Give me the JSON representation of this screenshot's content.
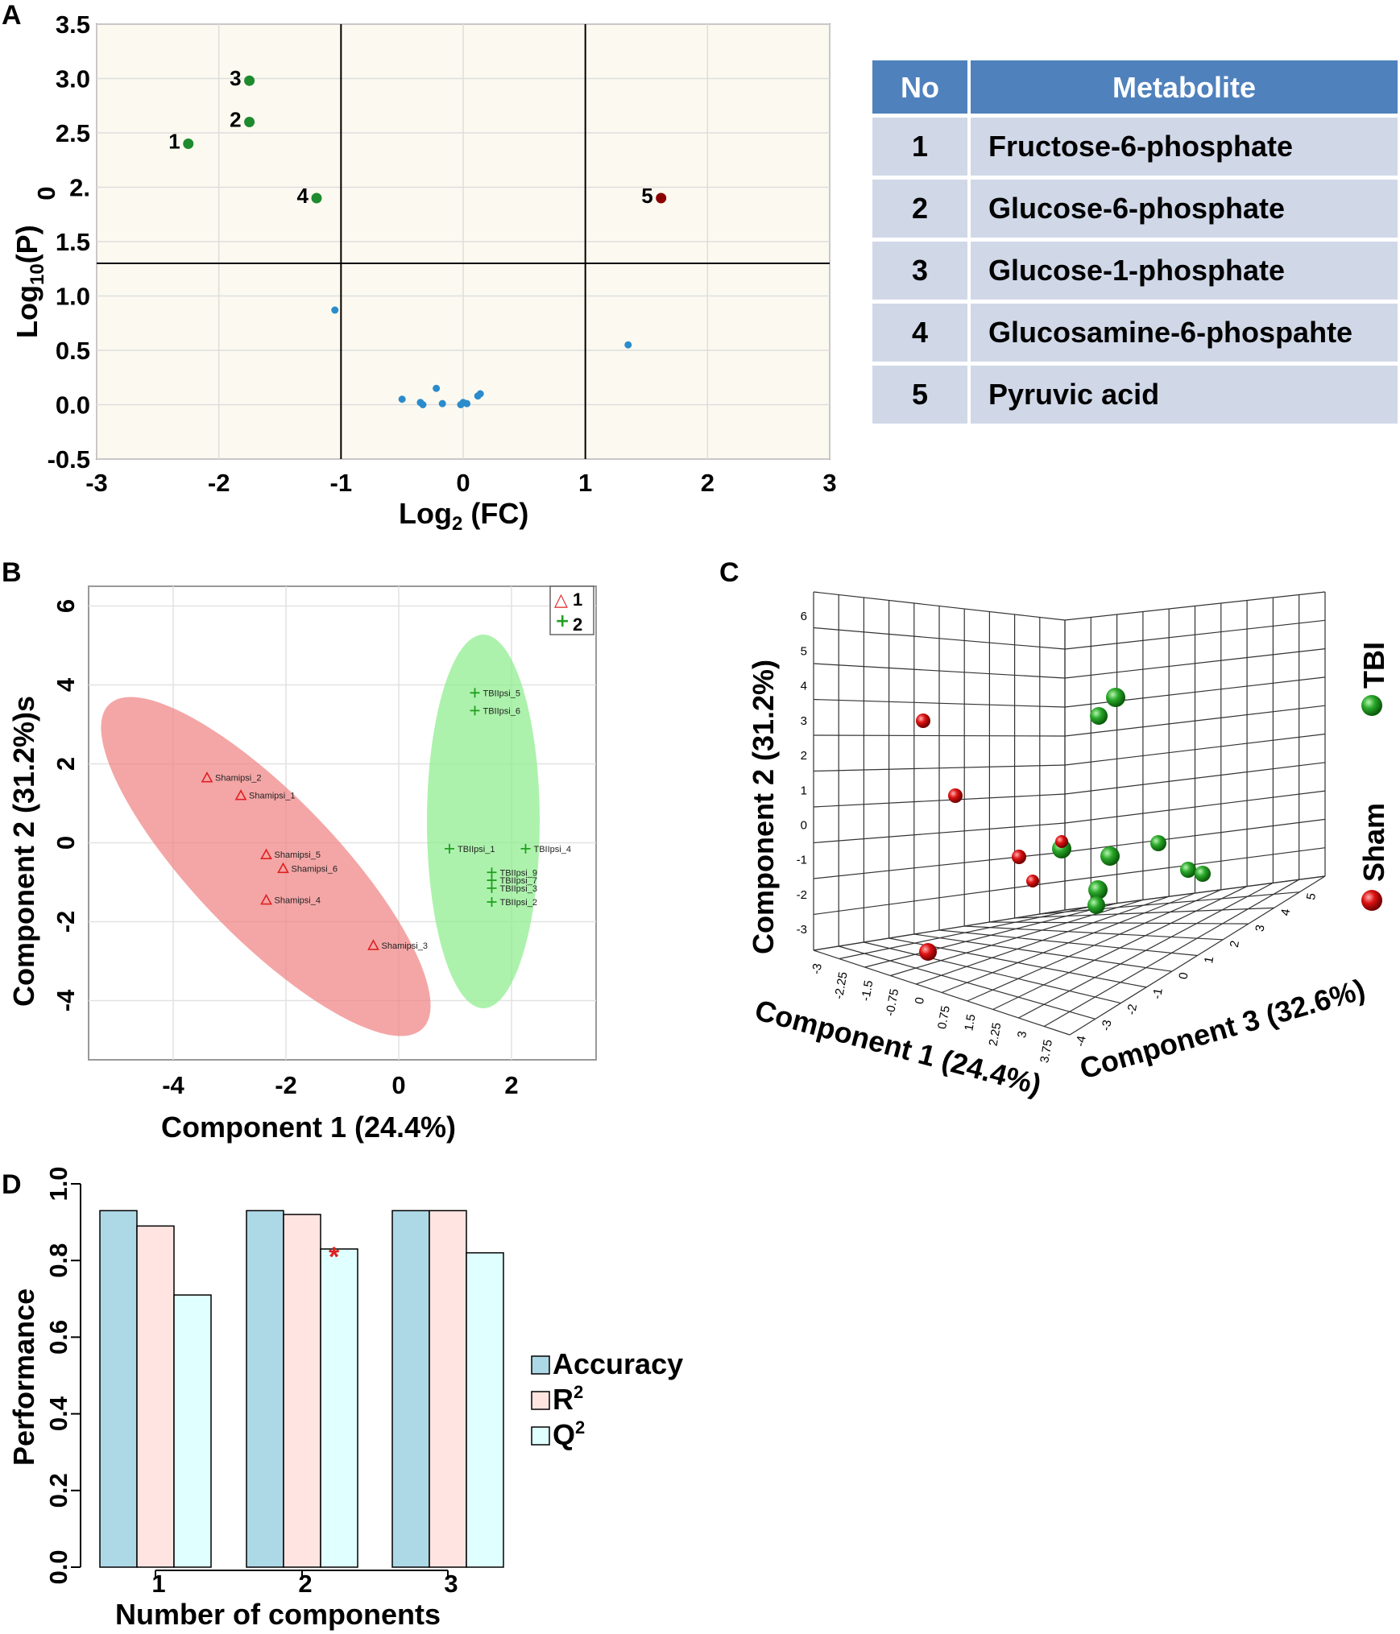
{
  "panel_letters": {
    "a": "A",
    "b": "B",
    "c": "C",
    "d": "D"
  },
  "colors": {
    "plot_bg_a": "#fcfaf0",
    "green": "#1e8b2e",
    "darkred": "#8b0000",
    "blue": "#2b8ccc",
    "table_head": "#4f81bd",
    "table_row": "#d0d8e8",
    "ellipse_red": "#f08080",
    "ellipse_green": "#90ee90",
    "bar_accuracy": "#add8e6",
    "bar_r2": "#ffe4e1",
    "bar_q2": "#e0ffff",
    "sphere_green": "#1a9a1a",
    "sphere_red": "#cc1111"
  },
  "chart_data": [
    {
      "id": "A",
      "type": "scatter",
      "title": "",
      "xlabel_main": "Log",
      "xlabel_sub": "2",
      "xlabel_rest": " (FC)",
      "ylabel_main": "Log",
      "ylabel_sub": "10",
      "ylabel_rest": "(P)",
      "xlim": [
        -3,
        3
      ],
      "ylim": [
        -0.5,
        3.5
      ],
      "xticks": [
        "-3",
        "-2",
        "-1",
        "0",
        "1",
        "2",
        "3"
      ],
      "xtick_values": [
        -3,
        -2,
        -1,
        0,
        1,
        2,
        3
      ],
      "yticks": [
        "3.5",
        "3.0",
        "2.5",
        "2.",
        "1.5",
        "1.0",
        "0.5",
        "0.0",
        "-0.5"
      ],
      "ytick_values": [
        3.5,
        3.0,
        2.5,
        2.0,
        1.5,
        1.0,
        0.5,
        0.0,
        -0.5
      ],
      "ytick_overlap_text": "0",
      "threshold_lines": {
        "x": [
          -1,
          1
        ],
        "y": 1.3
      },
      "labeled_points": [
        {
          "label": "1",
          "x": -2.25,
          "y": 2.4,
          "group": "down"
        },
        {
          "label": "2",
          "x": -1.75,
          "y": 2.6,
          "group": "down"
        },
        {
          "label": "3",
          "x": -1.75,
          "y": 2.98,
          "group": "down"
        },
        {
          "label": "4",
          "x": -1.2,
          "y": 1.9,
          "group": "down"
        },
        {
          "label": "5",
          "x": 1.62,
          "y": 1.9,
          "group": "up"
        }
      ],
      "other_points": [
        {
          "x": -1.05,
          "y": 0.87
        },
        {
          "x": 1.35,
          "y": 0.55
        },
        {
          "x": -0.5,
          "y": 0.05
        },
        {
          "x": -0.35,
          "y": 0.02
        },
        {
          "x": -0.33,
          "y": 0.0
        },
        {
          "x": -0.22,
          "y": 0.15
        },
        {
          "x": -0.17,
          "y": 0.01
        },
        {
          "x": -0.02,
          "y": 0.0
        },
        {
          "x": 0.0,
          "y": 0.02
        },
        {
          "x": 0.03,
          "y": 0.01
        },
        {
          "x": 0.12,
          "y": 0.08
        },
        {
          "x": 0.14,
          "y": 0.1
        }
      ]
    },
    {
      "id": "B",
      "type": "scatter",
      "xlabel": "Component 1 (24.4%)",
      "ylabel": "Component  2 (31.2%)s",
      "xlim": [
        -5.5,
        3.5
      ],
      "ylim": [
        -5.5,
        6.5
      ],
      "xticks": [
        "-4",
        "-2",
        "0",
        "2"
      ],
      "xtick_values": [
        -4,
        -2,
        0,
        2
      ],
      "yticks": [
        "6",
        "4",
        "2",
        "0",
        "-2",
        "-4"
      ],
      "ytick_values": [
        6,
        4,
        2,
        0,
        -2,
        -4
      ],
      "legend": [
        {
          "symbol": "△",
          "label": "1"
        },
        {
          "symbol": "+",
          "label": "2"
        }
      ],
      "series": [
        {
          "name": "1",
          "points": [
            {
              "label": "Shamipsi_2",
              "x": -3.4,
              "y": 1.65
            },
            {
              "label": "Shamipsi_1",
              "x": -2.8,
              "y": 1.2
            },
            {
              "label": "Shamipsi_5",
              "x": -2.35,
              "y": -0.3
            },
            {
              "label": "Shamipsi_6",
              "x": -2.05,
              "y": -0.65
            },
            {
              "label": "Shamipsi_4",
              "x": -2.35,
              "y": -1.45
            },
            {
              "label": "Shamipsi_3",
              "x": -0.45,
              "y": -2.6
            }
          ]
        },
        {
          "name": "2",
          "points": [
            {
              "label": "TBIIpsi_5",
              "x": 1.35,
              "y": 3.8
            },
            {
              "label": "TBIIpsi_6",
              "x": 1.35,
              "y": 3.35
            },
            {
              "label": "TBIIpsi_1",
              "x": 0.9,
              "y": -0.15
            },
            {
              "label": "TBIIpsi_4",
              "x": 2.25,
              "y": -0.15
            },
            {
              "label": "TBIIpsi_9",
              "x": 1.65,
              "y": -0.75
            },
            {
              "label": "TBIIpsi_7",
              "x": 1.65,
              "y": -0.95
            },
            {
              "label": "TBIIpsi_3",
              "x": 1.65,
              "y": -1.15
            },
            {
              "label": "TBIIpsi_2",
              "x": 1.65,
              "y": -1.5
            }
          ]
        }
      ]
    },
    {
      "id": "C",
      "type": "scatter3d",
      "ylabel": "Component 2 (31.2%)",
      "xlabel": "Component 1 (24.4%)",
      "zlabel": "Component 3 (32.6%)",
      "yticks": [
        "6",
        "5",
        "4",
        "3",
        "2",
        "1",
        "0",
        "-1",
        "-2",
        "-3"
      ],
      "xticks": [
        "-3",
        "-2.25",
        "-1.5",
        "-0.75",
        "0",
        "0.75",
        "1.5",
        "2.25",
        "3",
        "3.75"
      ],
      "zticks": [
        "-4",
        "-3",
        "-2",
        "-1",
        "0",
        "1",
        "2",
        "3",
        "4",
        "5"
      ],
      "legend": [
        {
          "label": "TBI"
        },
        {
          "label": "Sham"
        }
      ]
    },
    {
      "id": "D",
      "type": "bar",
      "xlabel": "Number of components",
      "ylabel": "Performance",
      "categories": [
        "1",
        "2",
        "3"
      ],
      "ylim": [
        0,
        1.0
      ],
      "yticks": [
        "0.0",
        "0.2",
        "0.4",
        "0.6",
        "0.8",
        "1.0"
      ],
      "ytick_values": [
        0,
        0.2,
        0.4,
        0.6,
        0.8,
        1.0
      ],
      "series": [
        {
          "name": "Accuracy",
          "values": [
            0.93,
            0.93,
            0.93
          ]
        },
        {
          "name": "R",
          "values": [
            0.89,
            0.92,
            0.93
          ]
        },
        {
          "name": "Q",
          "values": [
            0.71,
            0.83,
            0.82
          ]
        }
      ],
      "legend_superscript": "2",
      "annotation": "*"
    }
  ],
  "table": {
    "headers": [
      "No",
      "Metabolite"
    ],
    "rows": [
      {
        "no": "1",
        "metabolite": "Fructose-6-phosphate"
      },
      {
        "no": "2",
        "metabolite": "Glucose-6-phosphate"
      },
      {
        "no": "3",
        "metabolite": "Glucose-1-phosphate"
      },
      {
        "no": "4",
        "metabolite": "Glucosamine-6-phospahte"
      },
      {
        "no": "5",
        "metabolite": "Pyruvic acid"
      }
    ]
  }
}
